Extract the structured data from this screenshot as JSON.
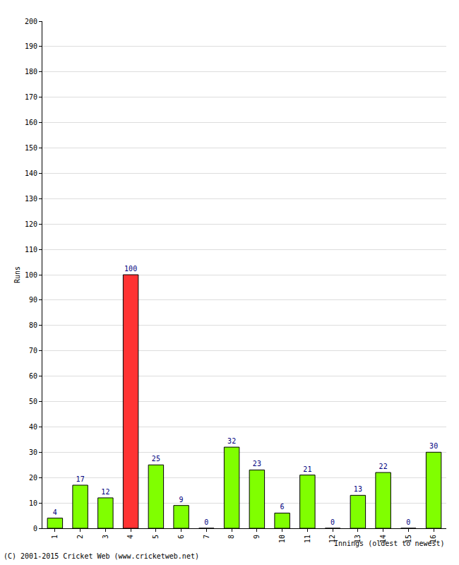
{
  "chart_data": {
    "type": "bar",
    "x_label": "Innings (oldest to newest)",
    "y_label": "Runs",
    "annotations": [
      "(C) 2001-2015 Cricket Web (www.cricketweb.net)"
    ],
    "categories": [
      "1",
      "2",
      "3",
      "4",
      "5",
      "6",
      "7",
      "8",
      "9",
      "10",
      "11",
      "12",
      "13",
      "14",
      "15",
      "16"
    ],
    "values": [
      4,
      17,
      12,
      100,
      25,
      9,
      0,
      32,
      23,
      6,
      21,
      0,
      13,
      22,
      0,
      30
    ],
    "colors": [
      "#80ff00",
      "#80ff00",
      "#80ff00",
      "#ff3333",
      "#80ff00",
      "#80ff00",
      "#80ff00",
      "#80ff00",
      "#80ff00",
      "#80ff00",
      "#80ff00",
      "#80ff00",
      "#80ff00",
      "#80ff00",
      "#80ff00",
      "#80ff00"
    ],
    "ylim": [
      0,
      200
    ],
    "yticks": [
      0,
      10,
      20,
      30,
      40,
      50,
      60,
      70,
      80,
      90,
      100,
      110,
      120,
      130,
      140,
      150,
      160,
      170,
      180,
      190,
      200
    ],
    "grid": true,
    "data_labels": true
  }
}
